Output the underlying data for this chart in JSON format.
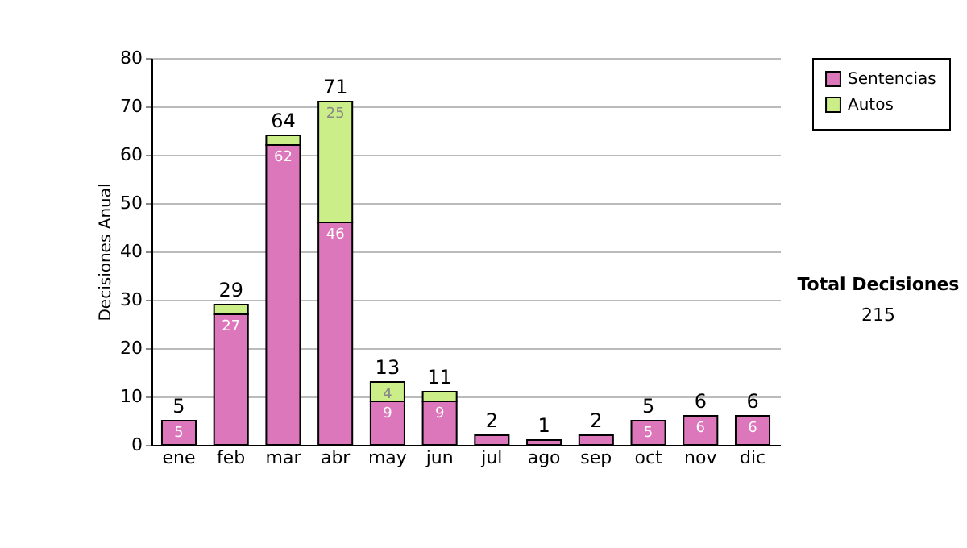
{
  "chart_data": {
    "type": "bar",
    "stacked": true,
    "ylabel": "Decisiones Anual",
    "categories": [
      "ene",
      "feb",
      "mar",
      "abr",
      "may",
      "jun",
      "jul",
      "ago",
      "sep",
      "oct",
      "nov",
      "dic"
    ],
    "series": [
      {
        "name": "Sentencias",
        "color": "#dd77bb",
        "values": [
          5,
          27,
          62,
          46,
          9,
          9,
          2,
          1,
          2,
          5,
          6,
          6
        ],
        "value_labels": [
          "5",
          "27",
          "62",
          "46",
          "9",
          "9",
          null,
          null,
          null,
          "5",
          "6",
          "6"
        ]
      },
      {
        "name": "Autos",
        "color": "#ccee88",
        "values": [
          0,
          2,
          2,
          25,
          4,
          2,
          0,
          0,
          0,
          0,
          0,
          0
        ],
        "value_labels": [
          null,
          null,
          null,
          "25",
          "4",
          null,
          null,
          null,
          null,
          null,
          null,
          null
        ]
      }
    ],
    "totals": [
      "5",
      "29",
      "64",
      "71",
      "13",
      "11",
      "2",
      "1",
      "2",
      "5",
      "6",
      "6"
    ],
    "ylim": [
      0,
      80
    ],
    "yticks": [
      0,
      10,
      20,
      30,
      40,
      50,
      60,
      70,
      80
    ],
    "grid": "y",
    "legend": "right",
    "annotations": [
      "Total Decisiones",
      "215"
    ]
  }
}
